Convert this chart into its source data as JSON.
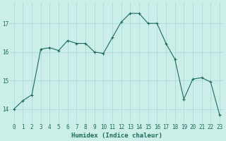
{
  "x": [
    0,
    1,
    2,
    3,
    4,
    5,
    6,
    7,
    8,
    9,
    10,
    11,
    12,
    13,
    14,
    15,
    16,
    17,
    18,
    19,
    20,
    21,
    22,
    23
  ],
  "y": [
    14.0,
    14.3,
    14.5,
    16.1,
    16.15,
    16.05,
    16.4,
    16.3,
    16.3,
    16.0,
    15.95,
    16.5,
    17.05,
    17.35,
    17.35,
    17.0,
    17.0,
    16.3,
    15.75,
    14.35,
    15.05,
    15.1,
    14.95,
    13.8
  ],
  "line_color": "#1a6b5a",
  "marker": "+",
  "marker_size": 3.5,
  "marker_lw": 0.8,
  "bg_color": "#cceee8",
  "grid_color": "#aaddda",
  "xlabel": "Humidex (Indice chaleur)",
  "xlim": [
    -0.5,
    23.5
  ],
  "ylim": [
    13.5,
    17.75
  ],
  "yticks": [
    14,
    15,
    16,
    17
  ],
  "label_fontsize": 6.5,
  "tick_fontsize": 5.5
}
